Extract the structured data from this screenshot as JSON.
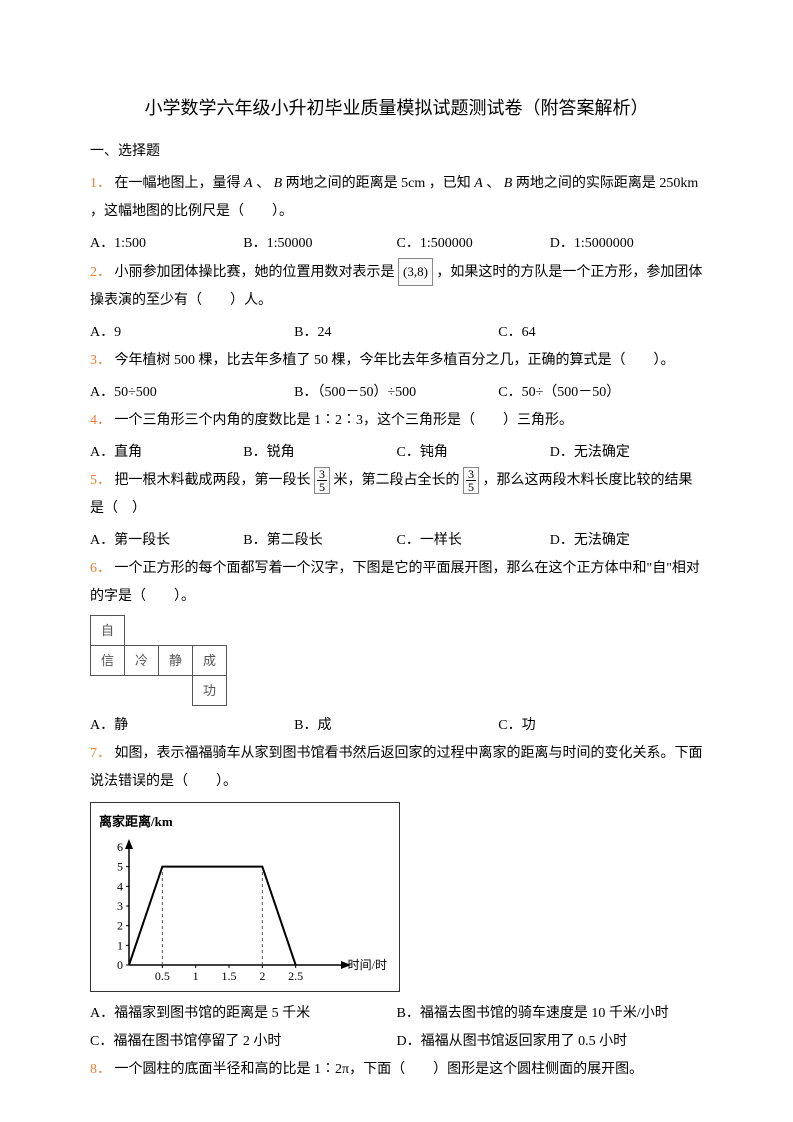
{
  "title": "小学数学六年级小升初毕业质量模拟试题测试卷（附答案解析）",
  "section1": "一、选择题",
  "q1": {
    "num": "1．",
    "text_a": "在一幅地图上，量得",
    "A": "A",
    "dot1": "、",
    "B": "B",
    "text_b": " 两地之间的距离是 5cm ，已知 ",
    "A2": "A",
    "dot2": "、",
    "B2": "B",
    "text_c": " 两地之间的实际距离是 250km ，这幅地图的比例尺是（　　）。",
    "opts": {
      "a": "A．1:500",
      "b": "B．1:50000",
      "c": "C．1:500000",
      "d": "D．1:5000000"
    }
  },
  "q2": {
    "num": "2．",
    "text_a": "小丽参加团体操比赛，她的位置用数对表示是",
    "coord": "(3,8)",
    "text_b": "，如果这时的方队是一个正方形，参加团体操表演的至少有（　　）人。",
    "opts": {
      "a": "A．9",
      "b": "B．24",
      "c": "C．64"
    }
  },
  "q3": {
    "num": "3．",
    "text": "今年植树 500 棵，比去年多植了 50 棵，今年比去年多植百分之几，正确的算式是（　　）。",
    "opts": {
      "a": "A．50÷500",
      "b": "B．（500－50）÷500",
      "c": "C．50÷（500－50）"
    }
  },
  "q4": {
    "num": "4．",
    "text": "一个三角形三个内角的度数比是 1∶2∶3，这个三角形是（　　）三角形。",
    "opts": {
      "a": "A．直角",
      "b": "B．锐角",
      "c": "C．钝角",
      "d": "D．无法确定"
    }
  },
  "q5": {
    "num": "5．",
    "text_a": "把一根木料截成两段，第一段长 ",
    "frac1_top": "3",
    "frac1_bot": "5",
    "text_b": "米，第二段占全长的",
    "frac2_top": "3",
    "frac2_bot": "5",
    "text_c": "，那么这两段木料长度比较的结果是（　）",
    "opts": {
      "a": "A．第一段长",
      "b": "B．第二段长",
      "c": "C．一样长",
      "d": "D．无法确定"
    }
  },
  "q6": {
    "num": "6．",
    "text": "一个正方形的每个面都写着一个汉字，下图是它的平面展开图，那么在这个正方体中和\"自\"相对的字是（　　）。",
    "net": {
      "r0c0": "自",
      "r1c0": "信",
      "r1c1": "冷",
      "r1c2": "静",
      "r1c3": "成",
      "r2c3": "功"
    },
    "opts": {
      "a": "A．静",
      "b": "B．成",
      "c": "C．功"
    }
  },
  "q7": {
    "num": "7．",
    "text": "如图，表示福福骑车从家到图书馆看书然后返回家的过程中离家的距离与时间的变化关系。下面说法错误的是（　　）。",
    "chart": {
      "ylabel": "离家距离/km",
      "xlabel": "时间/时",
      "yticks": [
        0,
        1,
        2,
        3,
        4,
        5,
        6
      ],
      "xticks": [
        "0.5",
        "1",
        "1.5",
        "2",
        "2.5"
      ],
      "points": [
        [
          0,
          0
        ],
        [
          0.5,
          5
        ],
        [
          2,
          5
        ],
        [
          2.5,
          0
        ]
      ],
      "dash_x": [
        0.5,
        2
      ],
      "axis_color": "#000000",
      "line_color": "#000000",
      "dash_color": "#555555",
      "bg": "#ffffff"
    },
    "opts": {
      "a": "A．福福家到图书馆的距离是 5 千米",
      "b": "B．福福去图书馆的骑车速度是 10 千米/小时",
      "c": "C．福福在图书馆停留了 2 小时",
      "d": "D．福福从图书馆返回家用了 0.5 小时"
    }
  },
  "q8": {
    "num": "8．",
    "text": "一个圆柱的底面半径和高的比是 1∶2π，下面（　　）图形是这个圆柱侧面的展开图。"
  }
}
